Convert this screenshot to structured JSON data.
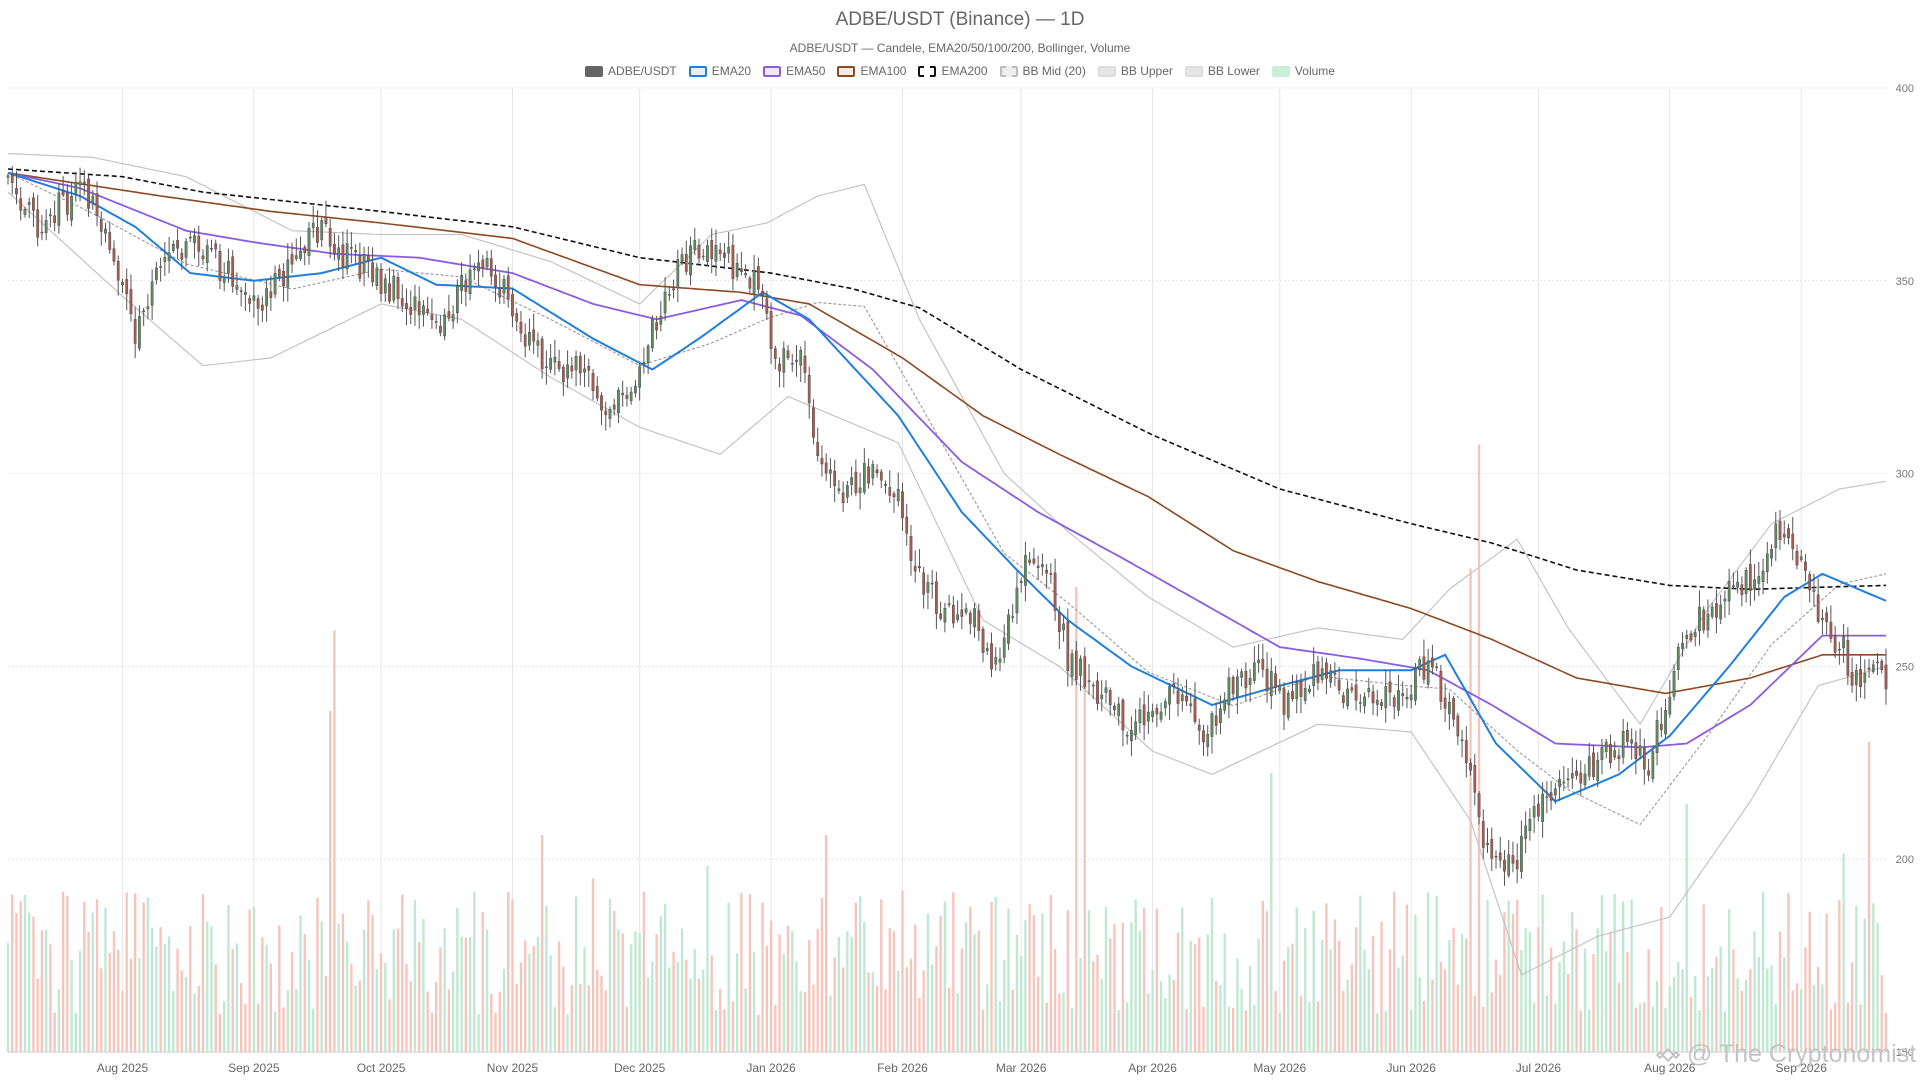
{
  "chart_data": {
    "type": "candlestick",
    "title": "ADBE/USDT (Binance) — 1D",
    "subtitle": "ADBE/USDT — Candele, EMA20/50/100/200, Bollinger, Volume",
    "ylim": [
      150,
      400
    ],
    "y_ticks": [
      150,
      200,
      250,
      300,
      350,
      400
    ],
    "x_range": [
      "2025-07-05",
      "2026-09-21"
    ],
    "x_ticks": [
      {
        "date": "2025-08-01",
        "label": "Aug 2025"
      },
      {
        "date": "2025-09-01",
        "label": "Sep 2025"
      },
      {
        "date": "2025-10-01",
        "label": "Oct 2025"
      },
      {
        "date": "2025-11-01",
        "label": "Nov 2025"
      },
      {
        "date": "2025-12-01",
        "label": "Dec 2025"
      },
      {
        "date": "2026-01-01",
        "label": "Jan 2026"
      },
      {
        "date": "2026-02-01",
        "label": "Feb 2026"
      },
      {
        "date": "2026-03-01",
        "label": "Mar 2026"
      },
      {
        "date": "2026-04-01",
        "label": "Apr 2026"
      },
      {
        "date": "2026-05-01",
        "label": "May 2026"
      },
      {
        "date": "2026-06-01",
        "label": "Jun 2026"
      },
      {
        "date": "2026-07-01",
        "label": "Jul 2026"
      },
      {
        "date": "2026-08-01",
        "label": "Aug 2026"
      },
      {
        "date": "2026-09-01",
        "label": "Sep 2026"
      }
    ],
    "grid": true,
    "legend_position": "top-center",
    "legend": [
      {
        "label": "ADBE/USDT",
        "style": "candle"
      },
      {
        "label": "EMA20",
        "style": "line"
      },
      {
        "label": "EMA50",
        "style": "line"
      },
      {
        "label": "EMA100",
        "style": "line"
      },
      {
        "label": "EMA200",
        "style": "dashed"
      },
      {
        "label": "BB Mid (20)",
        "style": "dotted"
      },
      {
        "label": "BB Upper",
        "style": "band"
      },
      {
        "label": "BB Lower",
        "style": "band"
      },
      {
        "label": "Volume",
        "style": "volume"
      }
    ],
    "colors": {
      "up": "#5f8a62",
      "down": "#a85c4e",
      "wick": "#555555",
      "ema20": "#1f7fe0",
      "ema50": "#8a5ce6",
      "ema100": "#8b4a22",
      "ema200": "#111111",
      "bb_mid": "#999999",
      "bb_band": "#c4c4c4",
      "vol_up": "#bfe8d2",
      "vol_down": "#f7c4bc"
    },
    "anchors": {
      "close": [
        [
          "2025-07-05",
          378
        ],
        [
          "2025-07-12",
          364
        ],
        [
          "2025-07-22",
          374
        ],
        [
          "2025-07-28",
          365
        ],
        [
          "2025-08-04",
          337
        ],
        [
          "2025-08-10",
          352
        ],
        [
          "2025-08-16",
          360
        ],
        [
          "2025-08-22",
          356
        ],
        [
          "2025-08-28",
          350
        ],
        [
          "2025-09-03",
          343
        ],
        [
          "2025-09-10",
          356
        ],
        [
          "2025-09-17",
          365
        ],
        [
          "2025-09-23",
          356
        ],
        [
          "2025-10-01",
          350
        ],
        [
          "2025-10-08",
          345
        ],
        [
          "2025-10-14",
          338
        ],
        [
          "2025-10-20",
          348
        ],
        [
          "2025-10-26",
          358
        ],
        [
          "2025-11-02",
          338
        ],
        [
          "2025-11-10",
          326
        ],
        [
          "2025-11-17",
          330
        ],
        [
          "2025-11-24",
          315
        ],
        [
          "2025-12-01",
          328
        ],
        [
          "2025-12-08",
          350
        ],
        [
          "2025-12-14",
          358
        ],
        [
          "2025-12-22",
          355
        ],
        [
          "2025-12-29",
          350
        ],
        [
          "2026-01-02",
          330
        ],
        [
          "2026-01-08",
          330
        ],
        [
          "2026-01-13",
          300
        ],
        [
          "2026-01-18",
          293
        ],
        [
          "2026-01-24",
          300
        ],
        [
          "2026-01-31",
          297
        ],
        [
          "2026-02-03",
          278
        ],
        [
          "2026-02-10",
          265
        ],
        [
          "2026-02-18",
          262
        ],
        [
          "2026-02-23",
          250
        ],
        [
          "2026-03-01",
          275
        ],
        [
          "2026-03-07",
          278
        ],
        [
          "2026-03-12",
          252
        ],
        [
          "2026-03-20",
          243
        ],
        [
          "2026-03-27",
          234
        ],
        [
          "2026-04-03",
          240
        ],
        [
          "2026-04-08",
          245
        ],
        [
          "2026-04-13",
          228
        ],
        [
          "2026-04-18",
          243
        ],
        [
          "2026-04-25",
          250
        ],
        [
          "2026-05-03",
          240
        ],
        [
          "2026-05-10",
          248
        ],
        [
          "2026-05-17",
          242
        ],
        [
          "2026-05-23",
          240
        ],
        [
          "2026-05-30",
          243
        ],
        [
          "2026-06-05",
          252
        ],
        [
          "2026-06-10",
          240
        ],
        [
          "2026-06-16",
          215
        ],
        [
          "2026-06-20",
          198
        ],
        [
          "2026-06-26",
          200
        ],
        [
          "2026-06-30",
          210
        ],
        [
          "2026-07-05",
          220
        ],
        [
          "2026-07-12",
          222
        ],
        [
          "2026-07-20",
          230
        ],
        [
          "2026-07-27",
          225
        ],
        [
          "2026-08-02",
          250
        ],
        [
          "2026-08-08",
          262
        ],
        [
          "2026-08-14",
          268
        ],
        [
          "2026-08-20",
          272
        ],
        [
          "2026-08-26",
          284
        ],
        [
          "2026-09-01",
          278
        ],
        [
          "2026-09-06",
          260
        ],
        [
          "2026-09-11",
          254
        ],
        [
          "2026-09-14",
          246
        ],
        [
          "2026-09-21",
          248
        ]
      ],
      "ema20": [
        [
          "2025-07-05",
          378
        ],
        [
          "2025-07-22",
          372
        ],
        [
          "2025-08-04",
          364
        ],
        [
          "2025-08-17",
          352
        ],
        [
          "2025-09-01",
          350
        ],
        [
          "2025-09-17",
          352
        ],
        [
          "2025-10-01",
          356
        ],
        [
          "2025-10-14",
          349
        ],
        [
          "2025-11-01",
          348
        ],
        [
          "2025-11-20",
          335
        ],
        [
          "2025-12-04",
          327
        ],
        [
          "2025-12-15",
          335
        ],
        [
          "2025-12-30",
          347
        ],
        [
          "2026-01-10",
          340
        ],
        [
          "2026-01-31",
          315
        ],
        [
          "2026-02-15",
          290
        ],
        [
          "2026-02-28",
          275
        ],
        [
          "2026-03-12",
          262
        ],
        [
          "2026-03-27",
          250
        ],
        [
          "2026-04-15",
          240
        ],
        [
          "2026-05-01",
          245
        ],
        [
          "2026-05-15",
          249
        ],
        [
          "2026-06-01",
          249
        ],
        [
          "2026-06-09",
          253
        ],
        [
          "2026-06-21",
          230
        ],
        [
          "2026-07-05",
          215
        ],
        [
          "2026-07-20",
          222
        ],
        [
          "2026-08-01",
          232
        ],
        [
          "2026-08-15",
          250
        ],
        [
          "2026-08-28",
          268
        ],
        [
          "2026-09-06",
          274
        ],
        [
          "2026-09-21",
          267
        ]
      ],
      "ema50": [
        [
          "2025-07-05",
          378
        ],
        [
          "2025-07-22",
          374
        ],
        [
          "2025-08-16",
          363
        ],
        [
          "2025-09-01",
          360
        ],
        [
          "2025-09-20",
          357
        ],
        [
          "2025-10-10",
          356
        ],
        [
          "2025-11-01",
          352
        ],
        [
          "2025-11-20",
          344
        ],
        [
          "2025-12-05",
          340
        ],
        [
          "2025-12-25",
          345
        ],
        [
          "2026-01-08",
          341
        ],
        [
          "2026-01-25",
          327
        ],
        [
          "2026-02-15",
          303
        ],
        [
          "2026-03-05",
          290
        ],
        [
          "2026-03-25",
          278
        ],
        [
          "2026-04-15",
          265
        ],
        [
          "2026-05-01",
          255
        ],
        [
          "2026-05-20",
          252
        ],
        [
          "2026-06-05",
          249
        ],
        [
          "2026-06-20",
          240
        ],
        [
          "2026-07-05",
          230
        ],
        [
          "2026-07-25",
          229
        ],
        [
          "2026-08-05",
          230
        ],
        [
          "2026-08-20",
          240
        ],
        [
          "2026-09-06",
          258
        ],
        [
          "2026-09-21",
          258
        ]
      ],
      "ema100": [
        [
          "2025-07-05",
          378
        ],
        [
          "2025-08-10",
          372
        ],
        [
          "2025-09-05",
          368
        ],
        [
          "2025-10-01",
          365
        ],
        [
          "2025-11-01",
          361
        ],
        [
          "2025-12-01",
          349
        ],
        [
          "2025-12-25",
          347
        ],
        [
          "2026-01-10",
          344
        ],
        [
          "2026-02-01",
          330
        ],
        [
          "2026-02-20",
          315
        ],
        [
          "2026-03-10",
          305
        ],
        [
          "2026-03-31",
          294
        ],
        [
          "2026-04-20",
          280
        ],
        [
          "2026-05-10",
          272
        ],
        [
          "2026-06-01",
          265
        ],
        [
          "2026-06-20",
          257
        ],
        [
          "2026-07-10",
          247
        ],
        [
          "2026-07-31",
          243
        ],
        [
          "2026-08-20",
          247
        ],
        [
          "2026-09-06",
          253
        ],
        [
          "2026-09-21",
          253
        ]
      ],
      "ema200": [
        [
          "2025-07-05",
          379
        ],
        [
          "2025-08-01",
          377
        ],
        [
          "2025-08-20",
          373
        ],
        [
          "2025-10-01",
          368
        ],
        [
          "2025-11-01",
          364
        ],
        [
          "2025-12-01",
          356
        ],
        [
          "2026-01-01",
          352
        ],
        [
          "2026-01-20",
          348
        ],
        [
          "2026-02-05",
          343
        ],
        [
          "2026-03-01",
          327
        ],
        [
          "2026-04-01",
          310
        ],
        [
          "2026-05-01",
          296
        ],
        [
          "2026-06-01",
          287
        ],
        [
          "2026-06-20",
          282
        ],
        [
          "2026-07-10",
          275
        ],
        [
          "2026-08-01",
          271
        ],
        [
          "2026-08-20",
          270
        ],
        [
          "2026-09-21",
          271
        ]
      ],
      "bb_upper": [
        [
          "2025-07-05",
          383
        ],
        [
          "2025-07-25",
          382
        ],
        [
          "2025-08-16",
          377
        ],
        [
          "2025-09-10",
          363
        ],
        [
          "2025-10-01",
          362
        ],
        [
          "2025-10-20",
          362
        ],
        [
          "2025-11-10",
          355
        ],
        [
          "2025-12-01",
          344
        ],
        [
          "2025-12-18",
          362
        ],
        [
          "2025-12-31",
          365
        ],
        [
          "2026-01-12",
          372
        ],
        [
          "2026-01-23",
          375
        ],
        [
          "2026-02-05",
          340
        ],
        [
          "2026-02-25",
          300
        ],
        [
          "2026-03-12",
          285
        ],
        [
          "2026-03-31",
          268
        ],
        [
          "2026-04-20",
          255
        ],
        [
          "2026-05-10",
          260
        ],
        [
          "2026-05-30",
          257
        ],
        [
          "2026-06-10",
          270
        ],
        [
          "2026-06-26",
          283
        ],
        [
          "2026-07-08",
          260
        ],
        [
          "2026-07-25",
          235
        ],
        [
          "2026-08-10",
          265
        ],
        [
          "2026-08-25",
          287
        ],
        [
          "2026-09-10",
          296
        ],
        [
          "2026-09-21",
          298
        ]
      ],
      "bb_lower": [
        [
          "2025-07-05",
          373
        ],
        [
          "2025-08-01",
          346
        ],
        [
          "2025-08-20",
          328
        ],
        [
          "2025-09-05",
          330
        ],
        [
          "2025-10-01",
          344
        ],
        [
          "2025-10-20",
          340
        ],
        [
          "2025-11-10",
          325
        ],
        [
          "2025-12-01",
          312
        ],
        [
          "2025-12-20",
          305
        ],
        [
          "2026-01-05",
          320
        ],
        [
          "2026-01-31",
          308
        ],
        [
          "2026-02-20",
          262
        ],
        [
          "2026-03-10",
          250
        ],
        [
          "2026-04-01",
          228
        ],
        [
          "2026-04-15",
          222
        ],
        [
          "2026-05-10",
          235
        ],
        [
          "2026-06-01",
          233
        ],
        [
          "2026-06-15",
          210
        ],
        [
          "2026-06-27",
          170
        ],
        [
          "2026-07-15",
          180
        ],
        [
          "2026-08-01",
          185
        ],
        [
          "2026-08-20",
          215
        ],
        [
          "2026-09-05",
          245
        ],
        [
          "2026-09-21",
          250
        ]
      ],
      "volume_spikes": [
        [
          "2025-09-19",
          0.55
        ],
        [
          "2025-09-20",
          0.68
        ],
        [
          "2025-11-08",
          0.35
        ],
        [
          "2025-11-20",
          0.28
        ],
        [
          "2025-12-17",
          0.3
        ],
        [
          "2026-01-14",
          0.35
        ],
        [
          "2026-03-14",
          0.75
        ],
        [
          "2026-03-16",
          0.6
        ],
        [
          "2026-04-29",
          0.45
        ],
        [
          "2026-06-15",
          0.78
        ],
        [
          "2026-06-17",
          0.98
        ],
        [
          "2026-08-05",
          0.4
        ],
        [
          "2026-09-11",
          0.32
        ],
        [
          "2026-09-17",
          0.5
        ]
      ]
    }
  },
  "watermark": {
    "text": "@ The Cryptonomist"
  }
}
